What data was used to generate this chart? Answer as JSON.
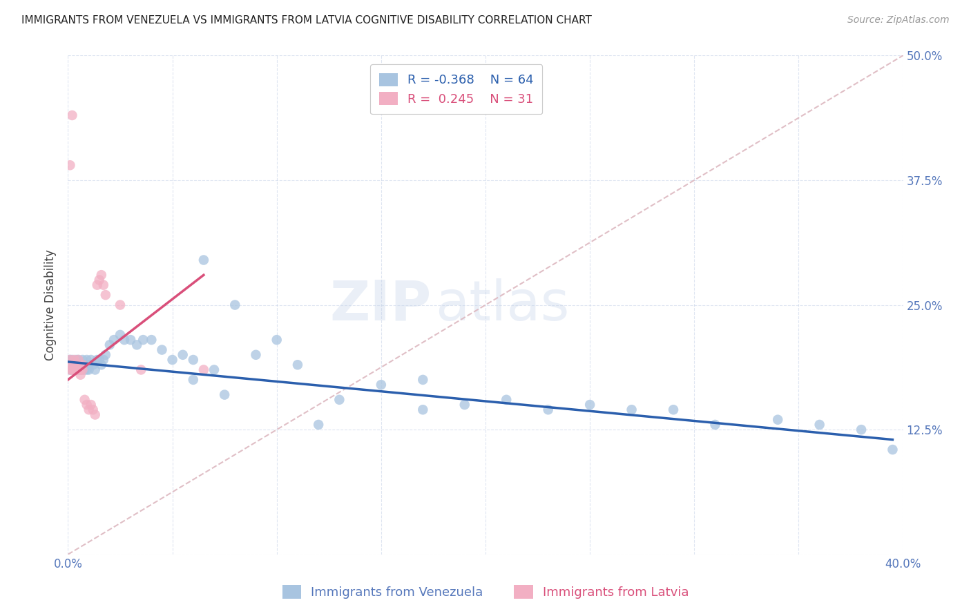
{
  "title": "IMMIGRANTS FROM VENEZUELA VS IMMIGRANTS FROM LATVIA COGNITIVE DISABILITY CORRELATION CHART",
  "source": "Source: ZipAtlas.com",
  "ylabel_label": "Cognitive Disability",
  "blue_label": "Immigrants from Venezuela",
  "pink_label": "Immigrants from Latvia",
  "xlim": [
    0.0,
    0.4
  ],
  "ylim": [
    0.0,
    0.5
  ],
  "blue_R": -0.368,
  "blue_N": 64,
  "pink_R": 0.245,
  "pink_N": 31,
  "blue_color": "#a8c4e0",
  "pink_color": "#f2afc3",
  "blue_line_color": "#2b5fad",
  "pink_line_color": "#d94f7a",
  "dashed_line_color": "#ddb8c0",
  "watermark_zip": "ZIP",
  "watermark_atlas": "atlas",
  "background_color": "#ffffff",
  "blue_x": [
    0.001,
    0.001,
    0.002,
    0.002,
    0.003,
    0.003,
    0.004,
    0.004,
    0.005,
    0.005,
    0.006,
    0.006,
    0.007,
    0.007,
    0.008,
    0.008,
    0.009,
    0.009,
    0.01,
    0.01,
    0.011,
    0.012,
    0.013,
    0.014,
    0.015,
    0.016,
    0.017,
    0.018,
    0.02,
    0.022,
    0.025,
    0.027,
    0.03,
    0.033,
    0.036,
    0.04,
    0.045,
    0.05,
    0.055,
    0.06,
    0.065,
    0.07,
    0.08,
    0.09,
    0.1,
    0.11,
    0.13,
    0.15,
    0.17,
    0.19,
    0.21,
    0.23,
    0.25,
    0.27,
    0.29,
    0.31,
    0.34,
    0.36,
    0.38,
    0.395,
    0.17,
    0.06,
    0.075,
    0.12
  ],
  "blue_y": [
    0.195,
    0.185,
    0.195,
    0.185,
    0.19,
    0.185,
    0.195,
    0.185,
    0.195,
    0.185,
    0.19,
    0.185,
    0.195,
    0.185,
    0.19,
    0.185,
    0.195,
    0.185,
    0.19,
    0.185,
    0.195,
    0.19,
    0.185,
    0.195,
    0.195,
    0.19,
    0.195,
    0.2,
    0.21,
    0.215,
    0.22,
    0.215,
    0.215,
    0.21,
    0.215,
    0.215,
    0.205,
    0.195,
    0.2,
    0.195,
    0.295,
    0.185,
    0.25,
    0.2,
    0.215,
    0.19,
    0.155,
    0.17,
    0.145,
    0.15,
    0.155,
    0.145,
    0.15,
    0.145,
    0.145,
    0.13,
    0.135,
    0.13,
    0.125,
    0.105,
    0.175,
    0.175,
    0.16,
    0.13
  ],
  "pink_x": [
    0.001,
    0.001,
    0.002,
    0.002,
    0.003,
    0.003,
    0.004,
    0.004,
    0.005,
    0.005,
    0.006,
    0.006,
    0.007,
    0.007,
    0.008,
    0.009,
    0.01,
    0.011,
    0.012,
    0.013,
    0.014,
    0.015,
    0.016,
    0.017,
    0.018,
    0.025,
    0.035,
    0.065,
    0.001,
    0.002,
    0.003
  ],
  "pink_y": [
    0.195,
    0.185,
    0.19,
    0.185,
    0.195,
    0.185,
    0.19,
    0.185,
    0.195,
    0.185,
    0.185,
    0.18,
    0.185,
    0.19,
    0.155,
    0.15,
    0.145,
    0.15,
    0.145,
    0.14,
    0.27,
    0.275,
    0.28,
    0.27,
    0.26,
    0.25,
    0.185,
    0.185,
    0.39,
    0.44,
    0.185
  ],
  "blue_line_x": [
    0.0,
    0.395
  ],
  "blue_line_y": [
    0.193,
    0.115
  ],
  "pink_line_x": [
    0.0,
    0.065
  ],
  "pink_line_y": [
    0.175,
    0.28
  ]
}
